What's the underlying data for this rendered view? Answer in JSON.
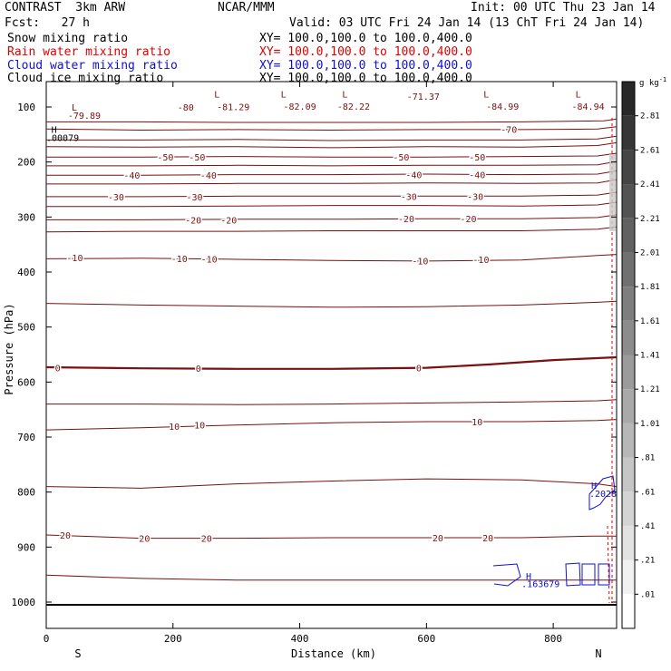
{
  "header": {
    "model": "CONTRAST  3km ARW",
    "org": "NCAR/MMM",
    "init": "Init: 00 UTC Thu 23 Jan 14",
    "fcst": "Fcst:   27 h",
    "valid": "Valid: 03 UTC Fri 24 Jan 14 (13 ChT Fri 24 Jan 14)"
  },
  "legend": [
    {
      "name": "Snow mixing ratio",
      "xy": "XY= 100.0,100.0 to 100.0,400.0",
      "color": "#000000"
    },
    {
      "name": "Rain water mixing ratio",
      "xy": "XY= 100.0,100.0 to 100.0,400.0",
      "color": "#e00000"
    },
    {
      "name": "Cloud water mixing ratio",
      "xy": "XY= 100.0,100.0 to 100.0,400.0",
      "color": "#1010d0"
    },
    {
      "name": "Cloud ice mixing ratio",
      "xy": "XY= 100.0,100.0 to 100.0,400.0",
      "color": "#000000"
    }
  ],
  "colors": {
    "contour": "#7a1010",
    "cloud": "#1010d0",
    "axis": "#000000"
  },
  "chart_data": {
    "type": "contour",
    "xlabel": "Distance (km)",
    "ylabel": "Pressure (hPa)",
    "xlim": [
      0,
      900
    ],
    "ylim": [
      1050,
      50
    ],
    "xticks": [
      "0",
      "200",
      "400",
      "600",
      "800"
    ],
    "yticks": [
      "100",
      "200",
      "300",
      "400",
      "500",
      "600",
      "700",
      "800",
      "900",
      "1000"
    ],
    "x_ends": {
      "left": "S",
      "right": "N"
    },
    "colorbar": {
      "unit": "g kg",
      "exp": "-1",
      "ticks": [
        "2.81",
        "2.61",
        "2.41",
        "2.21",
        "2.01",
        "1.81",
        "1.61",
        "1.41",
        "1.21",
        "1.01",
        ".81",
        ".61",
        ".41",
        ".21",
        ".01"
      ]
    },
    "isotherms": [
      {
        "temp": -70,
        "points": [
          [
            0,
            127
          ],
          [
            150,
            127
          ],
          [
            300,
            128
          ],
          [
            450,
            128
          ],
          [
            600,
            128
          ],
          [
            750,
            127
          ],
          [
            880,
            125
          ],
          [
            900,
            122
          ]
        ]
      },
      {
        "temp": -65,
        "points": [
          [
            0,
            140
          ],
          [
            150,
            142
          ],
          [
            300,
            141
          ],
          [
            450,
            142
          ],
          [
            600,
            141
          ],
          [
            750,
            141
          ],
          [
            870,
            140
          ],
          [
            900,
            136
          ]
        ]
      },
      {
        "temp": -60,
        "points": [
          [
            0,
            160
          ],
          [
            150,
            160
          ],
          [
            300,
            159
          ],
          [
            450,
            161
          ],
          [
            600,
            160
          ],
          [
            750,
            160
          ],
          [
            870,
            158
          ],
          [
            900,
            153
          ]
        ]
      },
      {
        "temp": -55,
        "points": [
          [
            0,
            172
          ],
          [
            150,
            173
          ],
          [
            300,
            172
          ],
          [
            450,
            174
          ],
          [
            600,
            172
          ],
          [
            750,
            173
          ],
          [
            870,
            170
          ],
          [
            900,
            165
          ]
        ]
      },
      {
        "temp": -50,
        "points": [
          [
            0,
            191
          ],
          [
            150,
            191
          ],
          [
            300,
            190
          ],
          [
            450,
            191
          ],
          [
            600,
            191
          ],
          [
            750,
            190
          ],
          [
            870,
            189
          ],
          [
            900,
            184
          ]
        ]
      },
      {
        "temp": -45,
        "points": [
          [
            0,
            207
          ],
          [
            150,
            207
          ],
          [
            300,
            206
          ],
          [
            450,
            207
          ],
          [
            600,
            206
          ],
          [
            750,
            206
          ],
          [
            870,
            205
          ],
          [
            900,
            199
          ]
        ]
      },
      {
        "temp": -40,
        "points": [
          [
            0,
            224
          ],
          [
            150,
            224
          ],
          [
            300,
            223
          ],
          [
            450,
            223
          ],
          [
            600,
            222
          ],
          [
            750,
            223
          ],
          [
            870,
            222
          ],
          [
            900,
            216
          ]
        ]
      },
      {
        "temp": -35,
        "points": [
          [
            0,
            240
          ],
          [
            150,
            240
          ],
          [
            300,
            239
          ],
          [
            450,
            239
          ],
          [
            600,
            238
          ],
          [
            750,
            239
          ],
          [
            870,
            238
          ],
          [
            900,
            232
          ]
        ]
      },
      {
        "temp": -30,
        "points": [
          [
            0,
            263
          ],
          [
            150,
            263
          ],
          [
            300,
            262
          ],
          [
            450,
            262
          ],
          [
            600,
            262
          ],
          [
            750,
            262
          ],
          [
            870,
            260
          ],
          [
            900,
            255
          ]
        ]
      },
      {
        "temp": -25,
        "points": [
          [
            0,
            281
          ],
          [
            150,
            281
          ],
          [
            300,
            280
          ],
          [
            450,
            279
          ],
          [
            600,
            279
          ],
          [
            750,
            280
          ],
          [
            870,
            278
          ],
          [
            900,
            273
          ]
        ]
      },
      {
        "temp": -20,
        "points": [
          [
            0,
            305
          ],
          [
            150,
            305
          ],
          [
            300,
            304
          ],
          [
            450,
            304
          ],
          [
            600,
            303
          ],
          [
            750,
            303
          ],
          [
            870,
            301
          ],
          [
            900,
            296
          ]
        ]
      },
      {
        "temp": -15,
        "points": [
          [
            0,
            327
          ],
          [
            150,
            326
          ],
          [
            300,
            326
          ],
          [
            450,
            325
          ],
          [
            600,
            325
          ],
          [
            750,
            325
          ],
          [
            870,
            322
          ],
          [
            900,
            318
          ]
        ]
      },
      {
        "temp": -10,
        "points": [
          [
            0,
            376
          ],
          [
            150,
            375
          ],
          [
            300,
            377
          ],
          [
            450,
            379
          ],
          [
            600,
            380
          ],
          [
            750,
            378
          ],
          [
            870,
            370
          ],
          [
            900,
            368
          ]
        ]
      },
      {
        "temp": -5,
        "points": [
          [
            0,
            457
          ],
          [
            150,
            460
          ],
          [
            300,
            462
          ],
          [
            450,
            464
          ],
          [
            600,
            463
          ],
          [
            750,
            460
          ],
          [
            870,
            455
          ],
          [
            900,
            453
          ]
        ]
      },
      {
        "temp": 0,
        "points": [
          [
            0,
            573
          ],
          [
            150,
            575
          ],
          [
            300,
            576
          ],
          [
            450,
            576
          ],
          [
            600,
            574
          ],
          [
            700,
            568
          ],
          [
            800,
            560
          ],
          [
            900,
            555
          ]
        ]
      },
      {
        "temp": 5,
        "points": [
          [
            0,
            640
          ],
          [
            150,
            640
          ],
          [
            300,
            641
          ],
          [
            450,
            640
          ],
          [
            600,
            638
          ],
          [
            750,
            636
          ],
          [
            870,
            634
          ],
          [
            900,
            632
          ]
        ]
      },
      {
        "temp": 10,
        "points": [
          [
            0,
            687
          ],
          [
            150,
            683
          ],
          [
            300,
            678
          ],
          [
            450,
            674
          ],
          [
            600,
            672
          ],
          [
            750,
            672
          ],
          [
            870,
            670
          ],
          [
            900,
            668
          ]
        ]
      },
      {
        "temp": 15,
        "points": [
          [
            0,
            790
          ],
          [
            150,
            793
          ],
          [
            300,
            785
          ],
          [
            450,
            780
          ],
          [
            600,
            776
          ],
          [
            750,
            778
          ],
          [
            870,
            785
          ],
          [
            900,
            790
          ]
        ]
      },
      {
        "temp": 20,
        "points": [
          [
            0,
            878
          ],
          [
            150,
            884
          ],
          [
            300,
            884
          ],
          [
            450,
            883
          ],
          [
            600,
            883
          ],
          [
            750,
            883
          ],
          [
            860,
            880
          ],
          [
            900,
            880
          ]
        ]
      },
      {
        "temp": 25,
        "points": [
          [
            0,
            951
          ],
          [
            150,
            957
          ],
          [
            300,
            960
          ],
          [
            450,
            960
          ],
          [
            600,
            960
          ],
          [
            750,
            960
          ],
          [
            870,
            960
          ],
          [
            900,
            960
          ]
        ]
      }
    ],
    "contour_labels": [
      {
        "text": "-80",
        "x": 220,
        "p": 100
      },
      {
        "text": "-81.29",
        "x": 295,
        "p": 99
      },
      {
        "text": "-82.09",
        "x": 400,
        "p": 98
      },
      {
        "text": "-82.22",
        "x": 485,
        "p": 98
      },
      {
        "text": "-71.37",
        "x": 595,
        "p": 80
      },
      {
        "text": "-84.99",
        "x": 720,
        "p": 98
      },
      {
        "text": "-84.94",
        "x": 855,
        "p": 98
      },
      {
        "text": "-79.89",
        "x": 60,
        "p": 115
      },
      {
        "text": "-70",
        "x": 730,
        "p": 140
      },
      {
        "text": "-50",
        "x": 188,
        "p": 191
      },
      {
        "text": "-50",
        "x": 238,
        "p": 191
      },
      {
        "text": "-50",
        "x": 560,
        "p": 191
      },
      {
        "text": "-50",
        "x": 680,
        "p": 191
      },
      {
        "text": "-40",
        "x": 135,
        "p": 224
      },
      {
        "text": "-40",
        "x": 256,
        "p": 224
      },
      {
        "text": "-40",
        "x": 580,
        "p": 223
      },
      {
        "text": "-40",
        "x": 680,
        "p": 223
      },
      {
        "text": "-30",
        "x": 110,
        "p": 263
      },
      {
        "text": "-30",
        "x": 234,
        "p": 263
      },
      {
        "text": "-30",
        "x": 572,
        "p": 262
      },
      {
        "text": "-30",
        "x": 677,
        "p": 262
      },
      {
        "text": "-20",
        "x": 232,
        "p": 305
      },
      {
        "text": "-20",
        "x": 288,
        "p": 305
      },
      {
        "text": "-20",
        "x": 568,
        "p": 303
      },
      {
        "text": "-20",
        "x": 666,
        "p": 303
      },
      {
        "text": "-10",
        "x": 45,
        "p": 374
      },
      {
        "text": "-10",
        "x": 210,
        "p": 375
      },
      {
        "text": "-10",
        "x": 257,
        "p": 376
      },
      {
        "text": "-10",
        "x": 590,
        "p": 379
      },
      {
        "text": "-10",
        "x": 686,
        "p": 377
      },
      {
        "text": "0",
        "x": 18,
        "p": 574
      },
      {
        "text": "0",
        "x": 240,
        "p": 575
      },
      {
        "text": "0",
        "x": 588,
        "p": 574
      },
      {
        "text": "10",
        "x": 202,
        "p": 680
      },
      {
        "text": "10",
        "x": 242,
        "p": 678
      },
      {
        "text": "10",
        "x": 680,
        "p": 672
      },
      {
        "text": "20",
        "x": 30,
        "p": 878
      },
      {
        "text": "20",
        "x": 155,
        "p": 884
      },
      {
        "text": "20",
        "x": 253,
        "p": 884
      },
      {
        "text": "20",
        "x": 618,
        "p": 883
      },
      {
        "text": "20",
        "x": 697,
        "p": 883
      }
    ],
    "markers": [
      {
        "text": "L",
        "x": 265,
        "p": 76,
        "color": "contour"
      },
      {
        "text": "L",
        "x": 370,
        "p": 76,
        "color": "contour"
      },
      {
        "text": "L",
        "x": 467,
        "p": 76,
        "color": "contour"
      },
      {
        "text": "L",
        "x": 690,
        "p": 76,
        "color": "contour"
      },
      {
        "text": "L",
        "x": 835,
        "p": 76,
        "color": "contour"
      },
      {
        "text": "L",
        "x": 40,
        "p": 100,
        "color": "contour"
      },
      {
        "text": "H",
        "x": 8,
        "p": 140,
        "color": "axis"
      },
      {
        "text": ".00079",
        "x": 0,
        "p": 155,
        "color": "axis"
      },
      {
        "text": "H",
        "x": 860,
        "p": 787,
        "color": "cloud"
      },
      {
        "text": ".2028",
        "x": 857,
        "p": 802,
        "color": "cloud"
      },
      {
        "text": "H",
        "x": 757,
        "p": 952,
        "color": "cloud"
      },
      {
        "text": ".163679",
        "x": 750,
        "p": 966,
        "color": "cloud"
      }
    ]
  }
}
